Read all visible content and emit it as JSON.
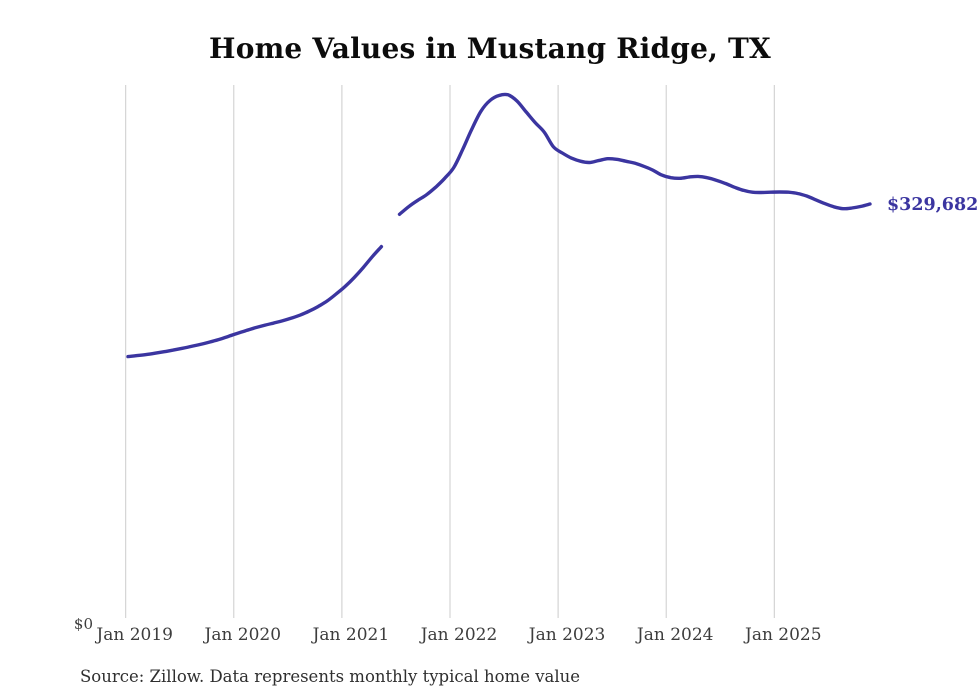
{
  "page": {
    "title": "Home Values in Mustang Ridge, TX",
    "source_note": "Source: Zillow. Data represents monthly typical home value"
  },
  "colors": {
    "line": "#3b35a0",
    "latest_label": "#3b35a0",
    "gridline": "#cccccc",
    "axis_text": "#3d3d3d",
    "title_text": "#0c0c0c",
    "source_text": "#2f2f2f",
    "background": "#ffffff"
  },
  "y_axis": {
    "zero_label": "$0"
  },
  "chart_data": {
    "type": "line",
    "title": "Home Values in Mustang Ridge, TX",
    "xlabel": "",
    "ylabel": "",
    "x_tick_labels": [
      "Jan 2019",
      "Jan 2020",
      "Jan 2021",
      "Jan 2022",
      "Jan 2023",
      "Jan 2024",
      "Jan 2025"
    ],
    "frequency": "monthly",
    "start_month": "2019-01",
    "end_month": "2025-11",
    "gap_months": [
      "2021-06"
    ],
    "y_range": [
      0,
      430000
    ],
    "grid": "vertical year gridlines only",
    "legend": "none",
    "last_value": 329682,
    "last_value_label": "$329,682",
    "months": [
      "2019-01",
      "2019-02",
      "2019-03",
      "2019-04",
      "2019-05",
      "2019-06",
      "2019-07",
      "2019-08",
      "2019-09",
      "2019-10",
      "2019-11",
      "2019-12",
      "2020-01",
      "2020-02",
      "2020-03",
      "2020-04",
      "2020-05",
      "2020-06",
      "2020-07",
      "2020-08",
      "2020-09",
      "2020-10",
      "2020-11",
      "2020-12",
      "2021-01",
      "2021-02",
      "2021-03",
      "2021-04",
      "2021-05",
      "2021-06",
      "2021-07",
      "2021-08",
      "2021-09",
      "2021-10",
      "2021-11",
      "2021-12",
      "2022-01",
      "2022-02",
      "2022-03",
      "2022-04",
      "2022-05",
      "2022-06",
      "2022-07",
      "2022-08",
      "2022-09",
      "2022-10",
      "2022-11",
      "2022-12",
      "2023-01",
      "2023-02",
      "2023-03",
      "2023-04",
      "2023-05",
      "2023-06",
      "2023-07",
      "2023-08",
      "2023-09",
      "2023-10",
      "2023-11",
      "2023-12",
      "2024-01",
      "2024-02",
      "2024-03",
      "2024-04",
      "2024-05",
      "2024-06",
      "2024-07",
      "2024-08",
      "2024-09",
      "2024-10",
      "2024-11",
      "2024-12",
      "2025-01",
      "2025-02",
      "2025-03",
      "2025-04",
      "2025-05",
      "2025-06",
      "2025-07",
      "2025-08",
      "2025-09",
      "2025-10",
      "2025-11"
    ],
    "series": [
      {
        "name": "Typical home value ($)",
        "values": [
          209000,
          209800,
          210600,
          211700,
          212900,
          214200,
          215600,
          217100,
          218700,
          220500,
          222500,
          224800,
          227200,
          229500,
          231700,
          233600,
          235400,
          237200,
          239300,
          241800,
          244900,
          248600,
          253000,
          258500,
          264500,
          271500,
          279500,
          288000,
          296000,
          null,
          321500,
          327500,
          332500,
          337000,
          343000,
          350000,
          358500,
          373000,
          389000,
          403000,
          411500,
          415500,
          416000,
          411000,
          402500,
          394000,
          386500,
          375000,
          370000,
          366000,
          363500,
          362500,
          364000,
          365500,
          365000,
          363500,
          362000,
          359500,
          356500,
          352500,
          350500,
          350000,
          351000,
          351500,
          350500,
          348500,
          346000,
          343000,
          340500,
          339000,
          338800,
          339000,
          339200,
          339000,
          338000,
          336000,
          333000,
          330000,
          327500,
          326000,
          326500,
          327800,
          329682
        ]
      }
    ]
  }
}
